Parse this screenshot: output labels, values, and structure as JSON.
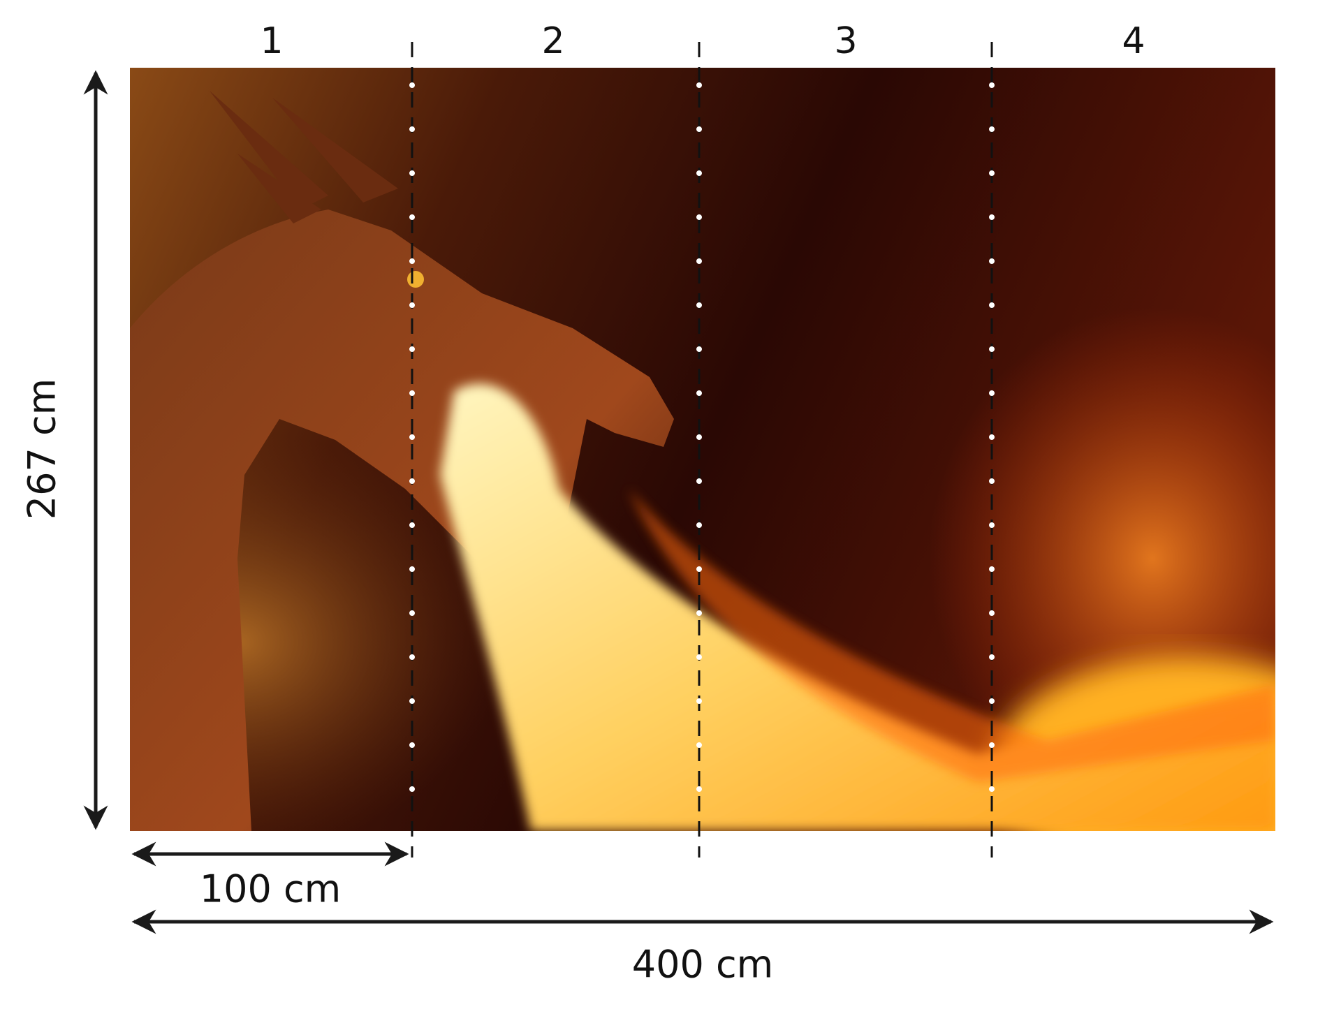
{
  "panels": {
    "labels": [
      "1",
      "2",
      "3",
      "4"
    ]
  },
  "dimensions": {
    "height": "267 cm",
    "panel_width": "100 cm",
    "total_width": "400 cm"
  }
}
